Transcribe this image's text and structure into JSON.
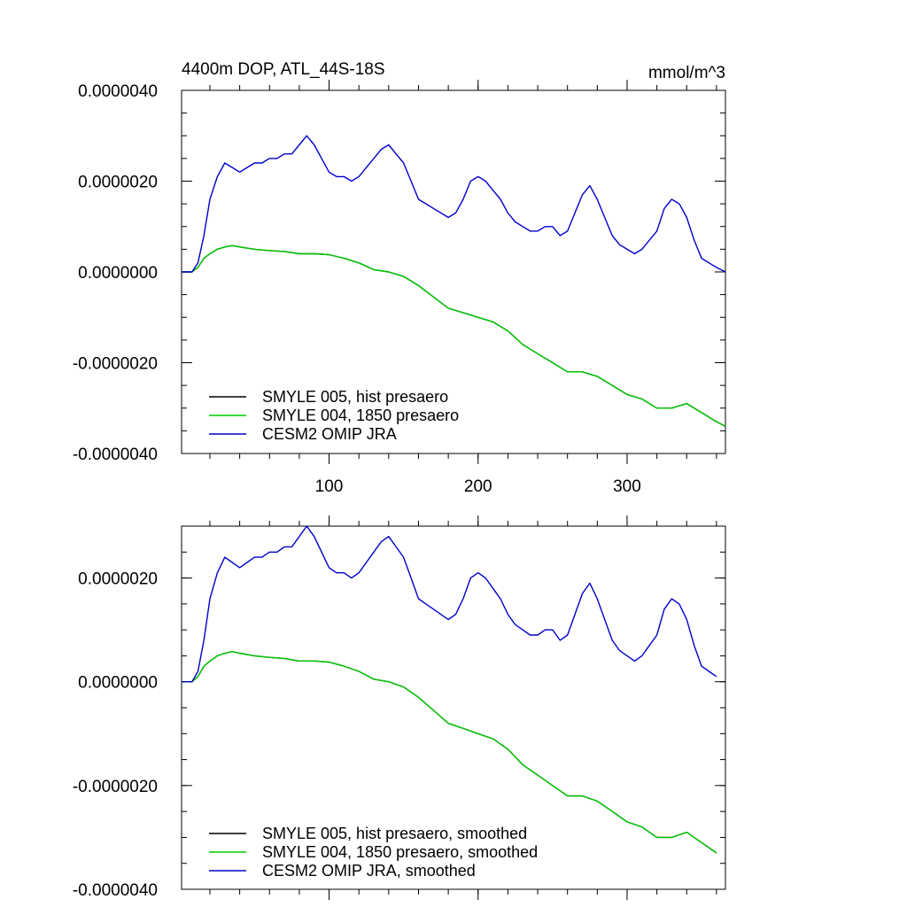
{
  "title_left": "4400m DOP, ATL_44S-18S",
  "title_right": "mmol/m^3",
  "chart_data": [
    {
      "type": "line",
      "panel": "top",
      "xlim": [
        1,
        366
      ],
      "ylim": [
        -4e-06,
        4e-06
      ],
      "xticks": [
        100,
        200,
        300
      ],
      "xtick_labels": [
        "100",
        "200",
        "300"
      ],
      "yticks": [
        -4e-06,
        -2e-06,
        0,
        2e-06,
        4e-06
      ],
      "ytick_labels": [
        "-0.0000040",
        "-0.0000020",
        "0.0000000",
        "0.0000020",
        "0.0000040"
      ],
      "legend_position": "lower-left",
      "series": [
        {
          "name": "SMYLE 005, hist presaero",
          "color": "#000000",
          "x": [
            1,
            8,
            12,
            16,
            20,
            25,
            30,
            35,
            40,
            50,
            60,
            70,
            80,
            90,
            100,
            110,
            120,
            130,
            140,
            150,
            160,
            170,
            180,
            190,
            200,
            210,
            220,
            230,
            240,
            250,
            260,
            270,
            280,
            290,
            300,
            310,
            320,
            330,
            340,
            350,
            360,
            366
          ],
          "y": [
            0,
            0,
            1e-07,
            3e-07,
            4e-07,
            5e-07,
            5.5e-07,
            5.8e-07,
            5.5e-07,
            5e-07,
            4.7e-07,
            4.5e-07,
            4e-07,
            4e-07,
            3.8e-07,
            3e-07,
            2e-07,
            5e-08,
            0,
            -1e-07,
            -3e-07,
            -5.5e-07,
            -8e-07,
            -9e-07,
            -1e-06,
            -1.1e-06,
            -1.3e-06,
            -1.6e-06,
            -1.8e-06,
            -2e-06,
            -2.2e-06,
            -2.2e-06,
            -2.3e-06,
            -2.5e-06,
            -2.7e-06,
            -2.8e-06,
            -3e-06,
            -3e-06,
            -2.9e-06,
            -3.1e-06,
            -3.3e-06,
            -3.4e-06
          ]
        },
        {
          "name": "SMYLE 004, 1850 presaero",
          "color": "#00cc00",
          "x": [
            1,
            8,
            12,
            16,
            20,
            25,
            30,
            35,
            40,
            50,
            60,
            70,
            80,
            90,
            100,
            110,
            120,
            130,
            140,
            150,
            160,
            170,
            180,
            190,
            200,
            210,
            220,
            230,
            240,
            250,
            260,
            270,
            280,
            290,
            300,
            310,
            320,
            330,
            340,
            350,
            360,
            366
          ],
          "y": [
            0,
            0,
            1e-07,
            3e-07,
            4e-07,
            5e-07,
            5.5e-07,
            5.8e-07,
            5.5e-07,
            5e-07,
            4.7e-07,
            4.5e-07,
            4e-07,
            4e-07,
            3.8e-07,
            3e-07,
            2e-07,
            5e-08,
            0,
            -1e-07,
            -3e-07,
            -5.5e-07,
            -8e-07,
            -9e-07,
            -1e-06,
            -1.1e-06,
            -1.3e-06,
            -1.6e-06,
            -1.8e-06,
            -2e-06,
            -2.2e-06,
            -2.2e-06,
            -2.3e-06,
            -2.5e-06,
            -2.7e-06,
            -2.8e-06,
            -3e-06,
            -3e-06,
            -2.9e-06,
            -3.1e-06,
            -3.3e-06,
            -3.4e-06
          ]
        },
        {
          "name": "CESM2 OMIP JRA",
          "color": "#0000cc",
          "x": [
            1,
            8,
            12,
            16,
            20,
            25,
            30,
            35,
            40,
            45,
            50,
            55,
            60,
            65,
            70,
            75,
            80,
            85,
            90,
            95,
            100,
            105,
            110,
            115,
            120,
            125,
            130,
            135,
            140,
            145,
            150,
            155,
            160,
            165,
            170,
            175,
            180,
            185,
            190,
            195,
            200,
            205,
            210,
            215,
            220,
            225,
            230,
            235,
            240,
            245,
            250,
            255,
            260,
            265,
            270,
            275,
            280,
            285,
            290,
            295,
            300,
            305,
            310,
            315,
            320,
            325,
            330,
            335,
            340,
            345,
            350,
            355,
            360,
            366
          ],
          "y": [
            0,
            0,
            2e-07,
            8e-07,
            1.6e-06,
            2.1e-06,
            2.4e-06,
            2.3e-06,
            2.2e-06,
            2.3e-06,
            2.4e-06,
            2.4e-06,
            2.5e-06,
            2.5e-06,
            2.6e-06,
            2.6e-06,
            2.8e-06,
            3e-06,
            2.8e-06,
            2.5e-06,
            2.2e-06,
            2.1e-06,
            2.1e-06,
            2e-06,
            2.1e-06,
            2.3e-06,
            2.5e-06,
            2.7e-06,
            2.8e-06,
            2.6e-06,
            2.4e-06,
            2e-06,
            1.6e-06,
            1.5e-06,
            1.4e-06,
            1.3e-06,
            1.2e-06,
            1.3e-06,
            1.6e-06,
            2e-06,
            2.1e-06,
            2e-06,
            1.8e-06,
            1.6e-06,
            1.3e-06,
            1.1e-06,
            1e-06,
            9e-07,
            9e-07,
            1e-06,
            1e-06,
            8e-07,
            9e-07,
            1.3e-06,
            1.7e-06,
            1.9e-06,
            1.6e-06,
            1.2e-06,
            8e-07,
            6e-07,
            5e-07,
            4e-07,
            5e-07,
            7e-07,
            9e-07,
            1.4e-06,
            1.6e-06,
            1.5e-06,
            1.2e-06,
            7e-07,
            3e-07,
            2e-07,
            1e-07,
            0
          ]
        }
      ]
    },
    {
      "type": "line",
      "panel": "bottom",
      "xlim": [
        1,
        366
      ],
      "ylim": [
        -4e-06,
        3e-06
      ],
      "xticks": [
        100,
        200,
        300
      ],
      "xtick_labels": [],
      "yticks": [
        -4e-06,
        -2e-06,
        0,
        2e-06
      ],
      "ytick_labels": [
        "-0.0000040",
        "-0.0000020",
        "0.0000000",
        "0.0000020"
      ],
      "legend_position": "lower-left",
      "series": [
        {
          "name": "SMYLE 005, hist presaero, smoothed",
          "color": "#000000",
          "x": [
            1,
            8,
            12,
            16,
            20,
            25,
            30,
            35,
            40,
            50,
            60,
            70,
            80,
            90,
            100,
            110,
            120,
            130,
            140,
            150,
            160,
            170,
            180,
            190,
            200,
            210,
            220,
            230,
            240,
            250,
            260,
            270,
            280,
            290,
            300,
            310,
            320,
            330,
            340,
            350,
            360
          ],
          "y": [
            0,
            0,
            1e-07,
            3e-07,
            4e-07,
            5e-07,
            5.5e-07,
            5.8e-07,
            5.5e-07,
            5e-07,
            4.7e-07,
            4.5e-07,
            4e-07,
            4e-07,
            3.8e-07,
            3e-07,
            2e-07,
            5e-08,
            0,
            -1e-07,
            -3e-07,
            -5.5e-07,
            -8e-07,
            -9e-07,
            -1e-06,
            -1.1e-06,
            -1.3e-06,
            -1.6e-06,
            -1.8e-06,
            -2e-06,
            -2.2e-06,
            -2.2e-06,
            -2.3e-06,
            -2.5e-06,
            -2.7e-06,
            -2.8e-06,
            -3e-06,
            -3e-06,
            -2.9e-06,
            -3.1e-06,
            -3.3e-06
          ]
        },
        {
          "name": "SMYLE 004, 1850 presaero, smoothed",
          "color": "#00cc00",
          "x": [
            1,
            8,
            12,
            16,
            20,
            25,
            30,
            35,
            40,
            50,
            60,
            70,
            80,
            90,
            100,
            110,
            120,
            130,
            140,
            150,
            160,
            170,
            180,
            190,
            200,
            210,
            220,
            230,
            240,
            250,
            260,
            270,
            280,
            290,
            300,
            310,
            320,
            330,
            340,
            350,
            360
          ],
          "y": [
            0,
            0,
            1e-07,
            3e-07,
            4e-07,
            5e-07,
            5.5e-07,
            5.8e-07,
            5.5e-07,
            5e-07,
            4.7e-07,
            4.5e-07,
            4e-07,
            4e-07,
            3.8e-07,
            3e-07,
            2e-07,
            5e-08,
            0,
            -1e-07,
            -3e-07,
            -5.5e-07,
            -8e-07,
            -9e-07,
            -1e-06,
            -1.1e-06,
            -1.3e-06,
            -1.6e-06,
            -1.8e-06,
            -2e-06,
            -2.2e-06,
            -2.2e-06,
            -2.3e-06,
            -2.5e-06,
            -2.7e-06,
            -2.8e-06,
            -3e-06,
            -3e-06,
            -2.9e-06,
            -3.1e-06,
            -3.3e-06
          ]
        },
        {
          "name": "CESM2 OMIP JRA, smoothed",
          "color": "#0000cc",
          "x": [
            1,
            8,
            12,
            16,
            20,
            25,
            30,
            35,
            40,
            45,
            50,
            55,
            60,
            65,
            70,
            75,
            80,
            85,
            90,
            95,
            100,
            105,
            110,
            115,
            120,
            125,
            130,
            135,
            140,
            145,
            150,
            155,
            160,
            165,
            170,
            175,
            180,
            185,
            190,
            195,
            200,
            205,
            210,
            215,
            220,
            225,
            230,
            235,
            240,
            245,
            250,
            255,
            260,
            265,
            270,
            275,
            280,
            285,
            290,
            295,
            300,
            305,
            310,
            315,
            320,
            325,
            330,
            335,
            340,
            345,
            350,
            355,
            360
          ],
          "y": [
            0,
            0,
            2e-07,
            8e-07,
            1.6e-06,
            2.1e-06,
            2.4e-06,
            2.3e-06,
            2.2e-06,
            2.3e-06,
            2.4e-06,
            2.4e-06,
            2.5e-06,
            2.5e-06,
            2.6e-06,
            2.6e-06,
            2.8e-06,
            3e-06,
            2.8e-06,
            2.5e-06,
            2.2e-06,
            2.1e-06,
            2.1e-06,
            2e-06,
            2.1e-06,
            2.3e-06,
            2.5e-06,
            2.7e-06,
            2.8e-06,
            2.6e-06,
            2.4e-06,
            2e-06,
            1.6e-06,
            1.5e-06,
            1.4e-06,
            1.3e-06,
            1.2e-06,
            1.3e-06,
            1.6e-06,
            2e-06,
            2.1e-06,
            2e-06,
            1.8e-06,
            1.6e-06,
            1.3e-06,
            1.1e-06,
            1e-06,
            9e-07,
            9e-07,
            1e-06,
            1e-06,
            8e-07,
            9e-07,
            1.3e-06,
            1.7e-06,
            1.9e-06,
            1.6e-06,
            1.2e-06,
            8e-07,
            6e-07,
            5e-07,
            4e-07,
            5e-07,
            7e-07,
            9e-07,
            1.4e-06,
            1.6e-06,
            1.5e-06,
            1.2e-06,
            7e-07,
            3e-07,
            2e-07,
            1e-07
          ]
        }
      ]
    }
  ]
}
